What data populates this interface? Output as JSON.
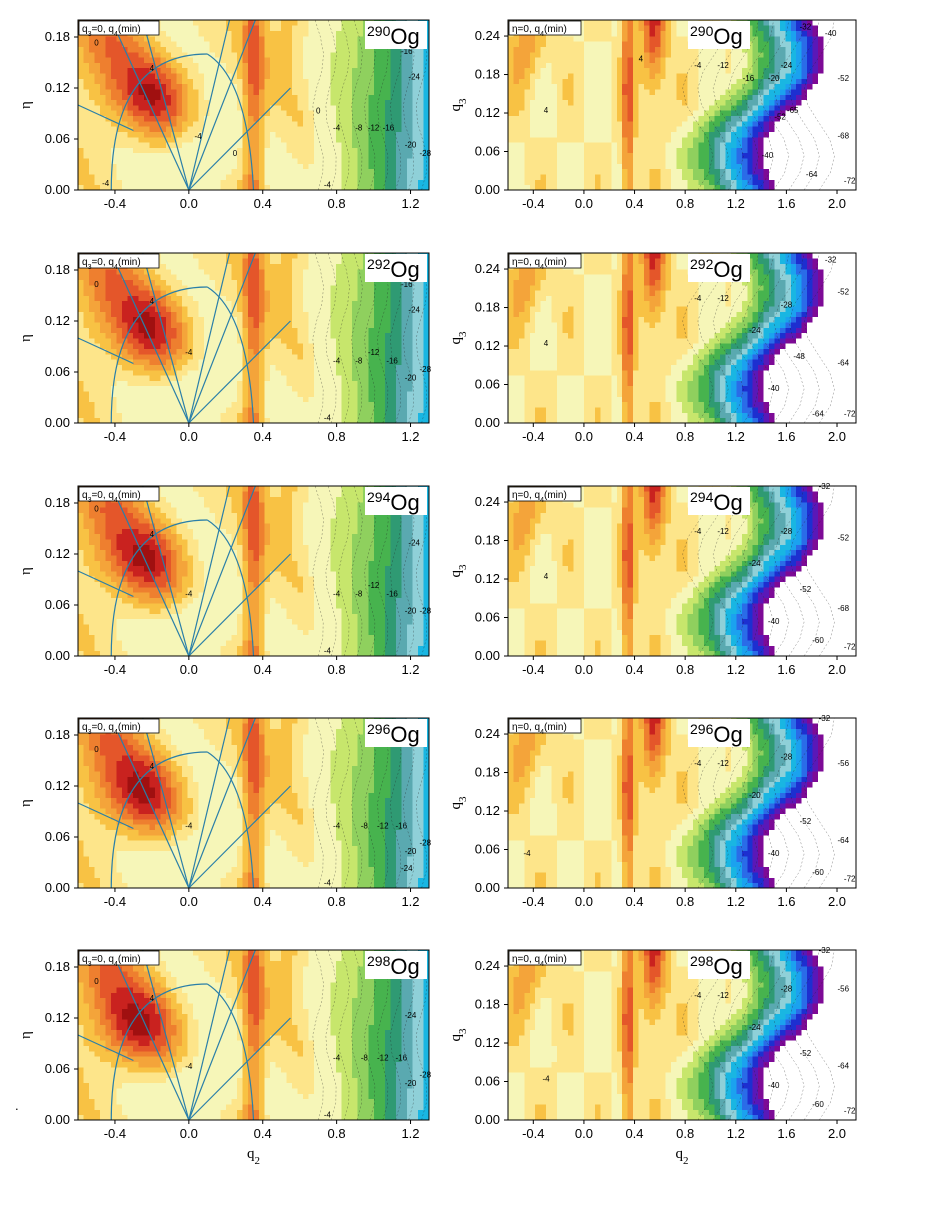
{
  "figure": {
    "stray_mark": "."
  },
  "colors": {
    "scale": [
      "#fdfdf0",
      "#f6f6b8",
      "#fde58a",
      "#f8c244",
      "#f4a43a",
      "#ee7f2f",
      "#e4562a",
      "#c9221f",
      "#a01010"
    ],
    "negative_scale": [
      "#e8f37a",
      "#c7e66c",
      "#8fd05e",
      "#47b34e",
      "#2f9a73",
      "#5aa9b0",
      "#8fd0d8",
      "#19b6e2",
      "#1ba2ef",
      "#2a6ce8",
      "#1d2fd0",
      "#5a18b8",
      "#7d0a96",
      "#ffffff"
    ],
    "guide_line": "#2a7fa8",
    "panel_border": "#000000"
  },
  "chart_data": [
    {
      "type": "heatmap",
      "panel": "left",
      "nucleus": {
        "mass": "290",
        "symbol": "Og"
      },
      "tag": "q3=0, q4(min)",
      "tag_parts": {
        "a": "q",
        "a_sub": "3",
        "b": "=0, q",
        "b_sub": "4",
        "c": "(min)"
      },
      "xlabel": "",
      "ylabel": "η",
      "xticks": [
        "-0.4",
        "0.0",
        "0.4",
        "0.8",
        "1.2"
      ],
      "yticks": [
        "0.00",
        "0.06",
        "0.12",
        "0.18"
      ],
      "xlim": [
        -0.6,
        1.3
      ],
      "ylim": [
        0.0,
        0.2
      ],
      "contour_labels": [
        {
          "q": 0.7,
          "v": 0.09,
          "text": "0"
        },
        {
          "q": -0.5,
          "v": 0.17,
          "text": "0"
        },
        {
          "q": -0.2,
          "v": 0.14,
          "text": "4"
        },
        {
          "q": 0.05,
          "v": 0.06,
          "text": "-4"
        },
        {
          "q": -0.45,
          "v": 0.005,
          "text": "-4"
        },
        {
          "q": 0.8,
          "v": 0.07,
          "text": "-4"
        },
        {
          "q": 0.92,
          "v": 0.07,
          "text": "-8"
        },
        {
          "q": 1.0,
          "v": 0.07,
          "text": "-12"
        },
        {
          "q": 1.08,
          "v": 0.07,
          "text": "-16"
        },
        {
          "q": 1.2,
          "v": 0.05,
          "text": "-20"
        },
        {
          "q": 1.22,
          "v": 0.13,
          "text": "-24"
        },
        {
          "q": 1.28,
          "v": 0.04,
          "text": "-28"
        },
        {
          "q": 1.18,
          "v": 0.16,
          "text": "-16"
        },
        {
          "q": 0.25,
          "v": 0.04,
          "text": "0"
        },
        {
          "q": 0.75,
          "v": 0.003,
          "text": "-4"
        }
      ]
    },
    {
      "type": "heatmap",
      "panel": "right",
      "nucleus": {
        "mass": "290",
        "symbol": "Og"
      },
      "tag": "η=0, q4(min)",
      "tag_parts": {
        "a": "η=0, q",
        "a_sub": "4",
        "b": "(min)"
      },
      "xlabel": "",
      "ylabel": "q3",
      "xticks": [
        "-0.4",
        "0.0",
        "0.4",
        "0.8",
        "1.2",
        "1.6",
        "2.0"
      ],
      "yticks": [
        "0.00",
        "0.06",
        "0.12",
        "0.18",
        "0.24"
      ],
      "xlim": [
        -0.6,
        2.15
      ],
      "ylim": [
        0.0,
        0.265
      ],
      "contour_labels": [
        {
          "q": -0.3,
          "v": 0.12,
          "text": "4"
        },
        {
          "q": 0.45,
          "v": 0.2,
          "text": "4"
        },
        {
          "q": 0.9,
          "v": 0.19,
          "text": "-4"
        },
        {
          "q": 1.1,
          "v": 0.19,
          "text": "-12"
        },
        {
          "q": 1.3,
          "v": 0.17,
          "text": "-16"
        },
        {
          "q": 1.5,
          "v": 0.17,
          "text": "-20"
        },
        {
          "q": 1.6,
          "v": 0.19,
          "text": "-24"
        },
        {
          "q": 1.75,
          "v": 0.25,
          "text": "-32"
        },
        {
          "q": 1.95,
          "v": 0.24,
          "text": "-40"
        },
        {
          "q": 2.05,
          "v": 0.17,
          "text": "-52"
        },
        {
          "q": 2.05,
          "v": 0.08,
          "text": "-68"
        },
        {
          "q": 1.8,
          "v": 0.02,
          "text": "-64"
        },
        {
          "q": 2.1,
          "v": 0.01,
          "text": "-72"
        },
        {
          "q": 1.45,
          "v": 0.05,
          "text": "-40"
        },
        {
          "q": 1.55,
          "v": 0.11,
          "text": "-52"
        },
        {
          "q": 1.65,
          "v": 0.12,
          "text": "-65"
        }
      ]
    },
    {
      "type": "heatmap",
      "panel": "left",
      "nucleus": {
        "mass": "292",
        "symbol": "Og"
      },
      "tag": "q3=0, q4(min)",
      "tag_parts": {
        "a": "q",
        "a_sub": "3",
        "b": "=0, q",
        "b_sub": "4",
        "c": "(min)"
      },
      "xlabel": "",
      "ylabel": "η",
      "xticks": [
        "-0.4",
        "0.0",
        "0.4",
        "0.8",
        "1.2"
      ],
      "yticks": [
        "0.00",
        "0.06",
        "0.12",
        "0.18"
      ],
      "xlim": [
        -0.6,
        1.3
      ],
      "ylim": [
        0.0,
        0.2
      ],
      "contour_labels": [
        {
          "q": -0.5,
          "v": 0.16,
          "text": "0"
        },
        {
          "q": -0.2,
          "v": 0.14,
          "text": "4"
        },
        {
          "q": 0.0,
          "v": 0.08,
          "text": "-4"
        },
        {
          "q": 0.8,
          "v": 0.07,
          "text": "-4"
        },
        {
          "q": 0.92,
          "v": 0.07,
          "text": "-8"
        },
        {
          "q": 1.0,
          "v": 0.08,
          "text": "-12"
        },
        {
          "q": 1.1,
          "v": 0.07,
          "text": "-16"
        },
        {
          "q": 1.2,
          "v": 0.05,
          "text": "-20"
        },
        {
          "q": 1.22,
          "v": 0.13,
          "text": "-24"
        },
        {
          "q": 1.28,
          "v": 0.06,
          "text": "-28"
        },
        {
          "q": 1.18,
          "v": 0.16,
          "text": "-16"
        },
        {
          "q": 0.75,
          "v": 0.003,
          "text": "-4"
        }
      ]
    },
    {
      "type": "heatmap",
      "panel": "right",
      "nucleus": {
        "mass": "292",
        "symbol": "Og"
      },
      "tag": "η=0, q4(min)",
      "tag_parts": {
        "a": "η=0, q",
        "a_sub": "4",
        "b": "(min)"
      },
      "xlabel": "",
      "ylabel": "q3",
      "xticks": [
        "-0.4",
        "0.0",
        "0.4",
        "0.8",
        "1.2",
        "1.6",
        "2.0"
      ],
      "yticks": [
        "0.00",
        "0.06",
        "0.12",
        "0.18",
        "0.24"
      ],
      "xlim": [
        -0.6,
        2.15
      ],
      "ylim": [
        0.0,
        0.265
      ],
      "contour_labels": [
        {
          "q": -0.3,
          "v": 0.12,
          "text": "4"
        },
        {
          "q": 0.9,
          "v": 0.19,
          "text": "-4"
        },
        {
          "q": 1.1,
          "v": 0.19,
          "text": "-12"
        },
        {
          "q": 1.35,
          "v": 0.14,
          "text": "-24"
        },
        {
          "q": 1.6,
          "v": 0.18,
          "text": "-28"
        },
        {
          "q": 1.95,
          "v": 0.25,
          "text": "-32"
        },
        {
          "q": 2.05,
          "v": 0.2,
          "text": "-52"
        },
        {
          "q": 2.05,
          "v": 0.09,
          "text": "-64"
        },
        {
          "q": 1.85,
          "v": 0.01,
          "text": "-64"
        },
        {
          "q": 2.1,
          "v": 0.01,
          "text": "-72"
        },
        {
          "q": 1.5,
          "v": 0.05,
          "text": "-40"
        },
        {
          "q": 1.7,
          "v": 0.1,
          "text": "-48"
        }
      ]
    },
    {
      "type": "heatmap",
      "panel": "left",
      "nucleus": {
        "mass": "294",
        "symbol": "Og"
      },
      "tag": "q3=0, q4(min)",
      "tag_parts": {
        "a": "q",
        "a_sub": "3",
        "b": "=0, q",
        "b_sub": "4",
        "c": "(min)"
      },
      "xlabel": "",
      "ylabel": "η",
      "xticks": [
        "-0.4",
        "0.0",
        "0.4",
        "0.8",
        "1.2"
      ],
      "yticks": [
        "0.00",
        "0.06",
        "0.12",
        "0.18"
      ],
      "xlim": [
        -0.6,
        1.3
      ],
      "ylim": [
        0.0,
        0.2
      ],
      "contour_labels": [
        {
          "q": -0.5,
          "v": 0.17,
          "text": "0"
        },
        {
          "q": -0.2,
          "v": 0.14,
          "text": "4"
        },
        {
          "q": 0.0,
          "v": 0.07,
          "text": "-4"
        },
        {
          "q": 0.8,
          "v": 0.07,
          "text": "-4"
        },
        {
          "q": 0.92,
          "v": 0.07,
          "text": "-8"
        },
        {
          "q": 1.0,
          "v": 0.08,
          "text": "-12"
        },
        {
          "q": 1.1,
          "v": 0.07,
          "text": "-16"
        },
        {
          "q": 1.2,
          "v": 0.05,
          "text": "-20"
        },
        {
          "q": 1.22,
          "v": 0.13,
          "text": "-24"
        },
        {
          "q": 1.28,
          "v": 0.05,
          "text": "-28"
        },
        {
          "q": 0.75,
          "v": 0.003,
          "text": "-4"
        }
      ]
    },
    {
      "type": "heatmap",
      "panel": "right",
      "nucleus": {
        "mass": "294",
        "symbol": "Og"
      },
      "tag": "η=0, q4(min)",
      "tag_parts": {
        "a": "η=0, q",
        "a_sub": "4",
        "b": "(min)"
      },
      "xlabel": "",
      "ylabel": "q3",
      "xticks": [
        "-0.4",
        "0.0",
        "0.4",
        "0.8",
        "1.2",
        "1.6",
        "2.0"
      ],
      "yticks": [
        "0.00",
        "0.06",
        "0.12",
        "0.18",
        "0.24"
      ],
      "xlim": [
        -0.6,
        2.15
      ],
      "ylim": [
        0.0,
        0.265
      ],
      "contour_labels": [
        {
          "q": -0.3,
          "v": 0.12,
          "text": "4"
        },
        {
          "q": 0.9,
          "v": 0.19,
          "text": "-4"
        },
        {
          "q": 1.1,
          "v": 0.19,
          "text": "-12"
        },
        {
          "q": 1.35,
          "v": 0.14,
          "text": "-24"
        },
        {
          "q": 1.6,
          "v": 0.19,
          "text": "-28"
        },
        {
          "q": 1.9,
          "v": 0.26,
          "text": "-32"
        },
        {
          "q": 2.05,
          "v": 0.18,
          "text": "-52"
        },
        {
          "q": 2.05,
          "v": 0.07,
          "text": "-68"
        },
        {
          "q": 1.85,
          "v": 0.02,
          "text": "-60"
        },
        {
          "q": 2.1,
          "v": 0.01,
          "text": "-72"
        },
        {
          "q": 1.5,
          "v": 0.05,
          "text": "-40"
        },
        {
          "q": 1.75,
          "v": 0.1,
          "text": "-52"
        }
      ]
    },
    {
      "type": "heatmap",
      "panel": "left",
      "nucleus": {
        "mass": "296",
        "symbol": "Og"
      },
      "tag": "q3=0, q4(min)",
      "tag_parts": {
        "a": "q",
        "a_sub": "3",
        "b": "=0, q",
        "b_sub": "4",
        "c": "(min)"
      },
      "xlabel": "",
      "ylabel": "η",
      "xticks": [
        "-0.4",
        "0.0",
        "0.4",
        "0.8",
        "1.2"
      ],
      "yticks": [
        "0.00",
        "0.06",
        "0.12",
        "0.18"
      ],
      "xlim": [
        -0.6,
        1.3
      ],
      "ylim": [
        0.0,
        0.2
      ],
      "contour_labels": [
        {
          "q": -0.5,
          "v": 0.16,
          "text": "0"
        },
        {
          "q": -0.2,
          "v": 0.14,
          "text": "4"
        },
        {
          "q": 0.0,
          "v": 0.07,
          "text": "-4"
        },
        {
          "q": 0.8,
          "v": 0.07,
          "text": "-4"
        },
        {
          "q": 0.95,
          "v": 0.07,
          "text": "-8"
        },
        {
          "q": 1.05,
          "v": 0.07,
          "text": "-12"
        },
        {
          "q": 1.15,
          "v": 0.07,
          "text": "-16"
        },
        {
          "q": 1.2,
          "v": 0.04,
          "text": "-20"
        },
        {
          "q": 1.18,
          "v": 0.02,
          "text": "-24"
        },
        {
          "q": 1.28,
          "v": 0.05,
          "text": "-28"
        },
        {
          "q": 0.75,
          "v": 0.003,
          "text": "-4"
        }
      ]
    },
    {
      "type": "heatmap",
      "panel": "right",
      "nucleus": {
        "mass": "296",
        "symbol": "Og"
      },
      "tag": "η=0, q4(min)",
      "tag_parts": {
        "a": "η=0, q",
        "a_sub": "4",
        "b": "(min)"
      },
      "xlabel": "",
      "ylabel": "q3",
      "xticks": [
        "-0.4",
        "0.0",
        "0.4",
        "0.8",
        "1.2",
        "1.6",
        "2.0"
      ],
      "yticks": [
        "0.00",
        "0.06",
        "0.12",
        "0.18",
        "0.24"
      ],
      "xlim": [
        -0.6,
        2.15
      ],
      "ylim": [
        0.0,
        0.265
      ],
      "contour_labels": [
        {
          "q": -0.45,
          "v": 0.05,
          "text": "-4"
        },
        {
          "q": 0.9,
          "v": 0.19,
          "text": "-4"
        },
        {
          "q": 1.1,
          "v": 0.19,
          "text": "-12"
        },
        {
          "q": 1.35,
          "v": 0.14,
          "text": "-20"
        },
        {
          "q": 1.6,
          "v": 0.2,
          "text": "-28"
        },
        {
          "q": 1.9,
          "v": 0.26,
          "text": "-32"
        },
        {
          "q": 2.05,
          "v": 0.19,
          "text": "-56"
        },
        {
          "q": 2.05,
          "v": 0.07,
          "text": "-64"
        },
        {
          "q": 1.85,
          "v": 0.02,
          "text": "-60"
        },
        {
          "q": 2.1,
          "v": 0.01,
          "text": "-72"
        },
        {
          "q": 1.5,
          "v": 0.05,
          "text": "-40"
        },
        {
          "q": 1.75,
          "v": 0.1,
          "text": "-52"
        }
      ]
    },
    {
      "type": "heatmap",
      "panel": "left",
      "nucleus": {
        "mass": "298",
        "symbol": "Og"
      },
      "tag": "q3=0, q4(min)",
      "tag_parts": {
        "a": "q",
        "a_sub": "3",
        "b": "=0, q",
        "b_sub": "4",
        "c": "(min)"
      },
      "xlabel": "q2",
      "ylabel": "η",
      "xticks": [
        "-0.4",
        "0.0",
        "0.4",
        "0.8",
        "1.2"
      ],
      "yticks": [
        "0.00",
        "0.06",
        "0.12",
        "0.18"
      ],
      "xlim": [
        -0.6,
        1.3
      ],
      "ylim": [
        0.0,
        0.2
      ],
      "contour_labels": [
        {
          "q": -0.5,
          "v": 0.16,
          "text": "0"
        },
        {
          "q": -0.2,
          "v": 0.14,
          "text": "4"
        },
        {
          "q": 0.0,
          "v": 0.06,
          "text": "-4"
        },
        {
          "q": 0.8,
          "v": 0.07,
          "text": "-4"
        },
        {
          "q": 0.95,
          "v": 0.07,
          "text": "-8"
        },
        {
          "q": 1.05,
          "v": 0.07,
          "text": "-12"
        },
        {
          "q": 1.15,
          "v": 0.07,
          "text": "-16"
        },
        {
          "q": 1.2,
          "v": 0.04,
          "text": "-20"
        },
        {
          "q": 1.2,
          "v": 0.12,
          "text": "-24"
        },
        {
          "q": 1.28,
          "v": 0.05,
          "text": "-28"
        },
        {
          "q": 0.75,
          "v": 0.003,
          "text": "-4"
        }
      ]
    },
    {
      "type": "heatmap",
      "panel": "right",
      "nucleus": {
        "mass": "298",
        "symbol": "Og"
      },
      "tag": "η=0, q4(min)",
      "tag_parts": {
        "a": "η=0, q",
        "a_sub": "4",
        "b": "(min)"
      },
      "xlabel": "q2",
      "ylabel": "q3",
      "xticks": [
        "-0.4",
        "0.0",
        "0.4",
        "0.8",
        "1.2",
        "1.6",
        "2.0"
      ],
      "yticks": [
        "0.00",
        "0.06",
        "0.12",
        "0.18",
        "0.24"
      ],
      "xlim": [
        -0.6,
        2.15
      ],
      "ylim": [
        0.0,
        0.265
      ],
      "contour_labels": [
        {
          "q": -0.3,
          "v": 0.06,
          "text": "-4"
        },
        {
          "q": 0.9,
          "v": 0.19,
          "text": "-4"
        },
        {
          "q": 1.1,
          "v": 0.19,
          "text": "-12"
        },
        {
          "q": 1.35,
          "v": 0.14,
          "text": "-24"
        },
        {
          "q": 1.6,
          "v": 0.2,
          "text": "-28"
        },
        {
          "q": 1.9,
          "v": 0.26,
          "text": "-32"
        },
        {
          "q": 2.05,
          "v": 0.2,
          "text": "-56"
        },
        {
          "q": 2.05,
          "v": 0.08,
          "text": "-64"
        },
        {
          "q": 1.85,
          "v": 0.02,
          "text": "-60"
        },
        {
          "q": 2.1,
          "v": 0.01,
          "text": "-72"
        },
        {
          "q": 1.5,
          "v": 0.05,
          "text": "-40"
        },
        {
          "q": 1.75,
          "v": 0.1,
          "text": "-52"
        }
      ]
    }
  ]
}
